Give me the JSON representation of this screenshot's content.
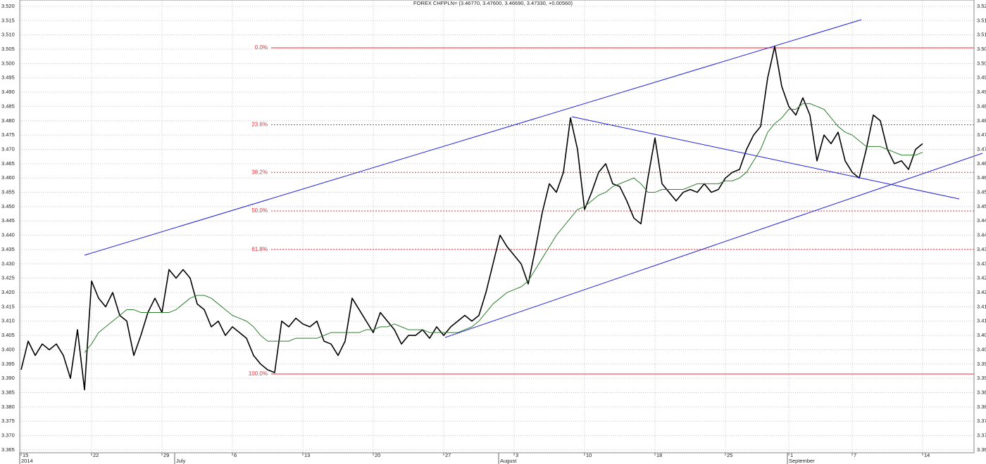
{
  "chart_data": {
    "type": "line",
    "title": "FOREX CHFPLN= (3.46770, 3.47600, 3.46690, 3.47330, +0.00560)",
    "categories": [
      "15",
      null,
      null,
      null,
      null,
      null,
      null,
      null,
      null,
      null,
      "22",
      null,
      null,
      null,
      null,
      null,
      null,
      null,
      null,
      null,
      "29",
      null,
      null,
      null,
      null,
      null,
      null,
      null,
      null,
      null,
      "6",
      null,
      null,
      null,
      null,
      null,
      null,
      null,
      null,
      null,
      "13",
      null,
      null,
      null,
      null,
      null,
      null,
      null,
      null,
      null,
      "20",
      null,
      null,
      null,
      null,
      null,
      null,
      null,
      null,
      null,
      "27",
      null,
      null,
      null,
      null,
      null,
      null,
      null,
      null,
      null,
      "3",
      null,
      null,
      null,
      null,
      null,
      null,
      null,
      null,
      null,
      "10",
      null,
      null,
      null,
      null,
      null,
      null,
      null,
      null,
      null,
      "18",
      null,
      null,
      null,
      null,
      null,
      null,
      null,
      null,
      null,
      "25",
      null,
      null,
      null,
      null,
      null,
      null,
      null,
      null,
      "1",
      null,
      null,
      null,
      null,
      null,
      null,
      null,
      null,
      "7",
      null,
      null,
      null,
      null,
      null,
      null,
      null,
      null,
      null,
      "14"
    ],
    "category_groups": [
      "2014",
      null,
      null,
      null,
      null,
      null,
      null,
      null,
      null,
      null,
      null,
      null,
      null,
      null,
      null,
      null,
      null,
      null,
      null,
      null,
      null,
      null,
      "July",
      null,
      null,
      null,
      null,
      null,
      null,
      null,
      null,
      null,
      null,
      null,
      null,
      null,
      null,
      null,
      null,
      null,
      null,
      null,
      null,
      null,
      null,
      null,
      null,
      null,
      null,
      null,
      null,
      null,
      null,
      null,
      null,
      null,
      null,
      null,
      null,
      null,
      null,
      null,
      null,
      null,
      null,
      null,
      null,
      null,
      "August",
      null,
      null,
      null,
      null,
      null,
      null,
      null,
      null,
      null,
      null,
      null,
      null,
      null,
      null,
      null,
      null,
      null,
      null,
      null,
      null,
      null,
      null,
      null,
      null,
      null,
      null,
      null,
      null,
      null,
      null,
      null,
      null,
      null,
      null,
      null,
      null,
      null,
      null,
      null,
      null,
      "September",
      null,
      null,
      null,
      null,
      null,
      null,
      null,
      null,
      null,
      null,
      null,
      null,
      null,
      null,
      null,
      null,
      null,
      null,
      null
    ],
    "series": [
      {
        "color": "#000000",
        "values": [
          3.393,
          3.403,
          3.398,
          3.402,
          3.4,
          3.402,
          3.398,
          3.39,
          3.407,
          3.386,
          3.424,
          3.418,
          3.415,
          3.42,
          3.412,
          3.41,
          3.398,
          3.405,
          3.413,
          3.418,
          3.413,
          3.428,
          3.425,
          3.428,
          3.425,
          3.416,
          3.414,
          3.408,
          3.41,
          3.405,
          3.408,
          3.406,
          3.404,
          3.398,
          3.395,
          3.393,
          3.392,
          3.41,
          3.408,
          3.411,
          3.409,
          3.408,
          3.41,
          3.403,
          3.402,
          3.398,
          3.403,
          3.418,
          3.414,
          3.41,
          3.406,
          3.413,
          3.41,
          3.407,
          3.402,
          3.405,
          3.405,
          3.407,
          3.404,
          3.408,
          3.405,
          3.408,
          3.41,
          3.412,
          3.41,
          3.412,
          3.42,
          3.43,
          3.44,
          3.436,
          3.433,
          3.43,
          3.423,
          3.435,
          3.448,
          3.458,
          3.455,
          3.462,
          3.481,
          3.47,
          3.449,
          3.455,
          3.462,
          3.465,
          3.458,
          3.457,
          3.452,
          3.446,
          3.444,
          3.46,
          3.474,
          3.458,
          3.455,
          3.452,
          3.455,
          3.456,
          3.455,
          3.458,
          3.455,
          3.456,
          3.46,
          3.462,
          3.463,
          3.47,
          3.475,
          3.478,
          3.495,
          3.506,
          3.492,
          3.485,
          3.482,
          3.488,
          3.482,
          3.466,
          3.475,
          3.472,
          3.476,
          3.466,
          3.462,
          3.46,
          3.47,
          3.482,
          3.48,
          3.47,
          3.465,
          3.466,
          3.463,
          3.47,
          3.472
        ]
      },
      {
        "color": "#2f7d2f",
        "values": [
          null,
          null,
          null,
          null,
          null,
          null,
          null,
          null,
          null,
          3.399,
          3.402,
          3.406,
          3.408,
          3.41,
          3.412,
          3.414,
          3.414,
          3.413,
          3.413,
          3.413,
          3.413,
          3.413,
          3.414,
          3.416,
          3.418,
          3.419,
          3.419,
          3.418,
          3.416,
          3.414,
          3.412,
          3.411,
          3.41,
          3.408,
          3.405,
          3.403,
          3.403,
          3.403,
          3.403,
          3.404,
          3.404,
          3.404,
          3.404,
          3.405,
          3.406,
          3.406,
          3.406,
          3.406,
          3.406,
          3.407,
          3.407,
          3.408,
          3.408,
          3.409,
          3.408,
          3.407,
          3.407,
          3.407,
          3.406,
          3.406,
          3.406,
          3.406,
          3.406,
          3.407,
          3.408,
          3.41,
          3.413,
          3.416,
          3.418,
          3.42,
          3.421,
          3.422,
          3.424,
          3.428,
          3.432,
          3.436,
          3.44,
          3.443,
          3.446,
          3.449,
          3.45,
          3.452,
          3.454,
          3.455,
          3.457,
          3.458,
          3.459,
          3.46,
          3.458,
          3.455,
          3.455,
          3.456,
          3.456,
          3.456,
          3.456,
          3.457,
          3.458,
          3.458,
          3.458,
          3.458,
          3.459,
          3.459,
          3.46,
          3.462,
          3.466,
          3.47,
          3.476,
          3.479,
          3.481,
          3.484,
          3.484,
          3.486,
          3.486,
          3.485,
          3.484,
          3.481,
          3.478,
          3.476,
          3.475,
          3.473,
          3.471,
          3.471,
          3.471,
          3.47,
          3.469,
          3.468,
          3.468,
          3.468,
          3.469
        ]
      }
    ],
    "ylim": [
      3.364,
      3.5222
    ],
    "yticks": [
      3.365,
      {
        "value": 3.37,
        "label": "3.370"
      },
      3.375,
      {
        "value": 3.38,
        "label": "3.380"
      },
      3.385,
      {
        "value": 3.39,
        "label": "3.390"
      },
      3.395,
      {
        "value": 3.4,
        "label": "3.400"
      },
      3.405,
      {
        "value": 3.41,
        "label": "3.410"
      },
      3.415,
      {
        "value": 3.42,
        "label": "3.420"
      },
      3.425,
      {
        "value": 3.43,
        "label": "3.430"
      },
      3.435,
      {
        "value": 3.44,
        "label": "3.440"
      },
      3.445,
      {
        "value": 3.45,
        "label": "3.450"
      },
      3.455,
      {
        "value": 3.46,
        "label": "3.460"
      },
      3.465,
      {
        "value": 3.47,
        "label": "3.470"
      },
      3.475,
      {
        "value": 3.48,
        "label": "3.480"
      },
      3.485,
      {
        "value": 3.49,
        "label": "3.490"
      },
      3.495,
      {
        "value": 3.5,
        "label": "3.500"
      },
      3.505,
      {
        "value": 3.51,
        "label": "3.510"
      },
      3.515,
      {
        "value": 3.52,
        "label": "3.520"
      }
    ],
    "grid": true,
    "fibonacci": {
      "high": 3.5055,
      "low": 3.3915,
      "color": "#e8323c",
      "levels": [
        {
          "value": 0,
          "label": "0.0%"
        },
        {
          "value": 23.6,
          "label": "23.6%"
        },
        {
          "value": 38.2,
          "label": "38.2%"
        },
        {
          "value": 50,
          "label": "50.0%"
        },
        {
          "value": 61.8,
          "label": "61.8%"
        },
        {
          "value": 100,
          "label": "100.0%"
        }
      ]
    }
  }
}
